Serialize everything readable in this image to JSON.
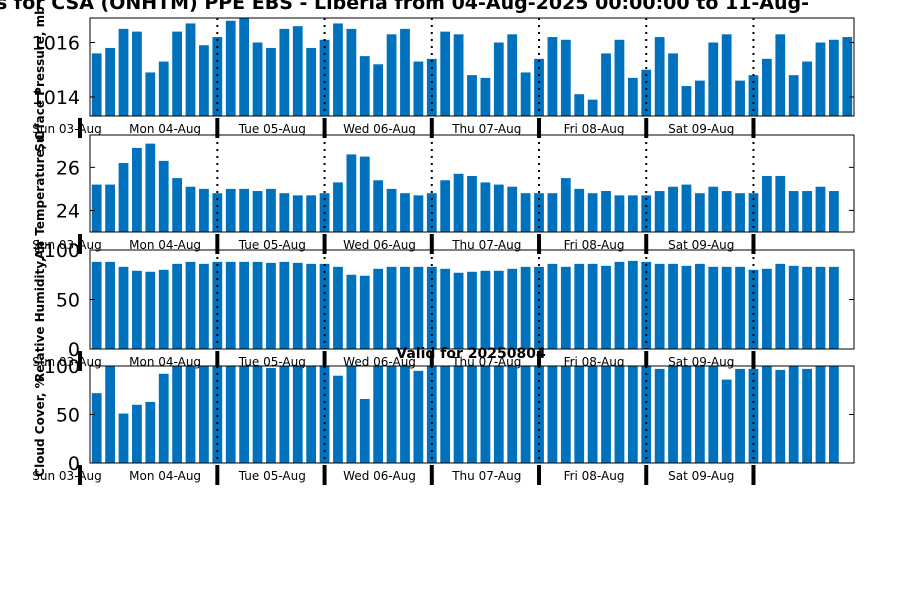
{
  "chart_title": "s for CSA (ONHTM) PPE EBS  - Liberia from 04-Aug-2025 00:00:00 to 11-Aug-",
  "valid_text": "Valid for 20250804",
  "colors": {
    "bar": "#0072BD",
    "axis": "#000000",
    "background": "#ffffff"
  },
  "chart_data": [
    {
      "type": "bar",
      "ylabel": "Surface Pressure, mb",
      "ylim": [
        1013.3,
        1016.9
      ],
      "yticks": [
        1014,
        1016
      ],
      "ytick_labels": [
        "1014",
        "1016"
      ],
      "x": [
        "03-Aug 01:00",
        "03-Aug 04:00",
        "03-Aug 07:00",
        "03-Aug 10:00",
        "03-Aug 13:00",
        "03-Aug 16:00",
        "03-Aug 19:00",
        "03-Aug 22:00",
        "04-Aug 01:00",
        "04-Aug 04:00",
        "04-Aug 07:00",
        "04-Aug 10:00",
        "04-Aug 13:00",
        "04-Aug 16:00",
        "04-Aug 19:00",
        "04-Aug 22:00",
        "05-Aug 01:00",
        "05-Aug 04:00",
        "05-Aug 07:00",
        "05-Aug 10:00",
        "05-Aug 13:00",
        "05-Aug 16:00",
        "05-Aug 19:00",
        "05-Aug 22:00",
        "06-Aug 01:00",
        "06-Aug 04:00",
        "06-Aug 07:00",
        "06-Aug 10:00",
        "06-Aug 13:00",
        "06-Aug 16:00",
        "06-Aug 19:00",
        "06-Aug 22:00",
        "07-Aug 01:00",
        "07-Aug 04:00",
        "07-Aug 07:00",
        "07-Aug 10:00",
        "07-Aug 13:00",
        "07-Aug 16:00",
        "07-Aug 19:00",
        "07-Aug 22:00",
        "08-Aug 01:00",
        "08-Aug 04:00",
        "08-Aug 07:00",
        "08-Aug 10:00",
        "08-Aug 13:00",
        "08-Aug 16:00",
        "08-Aug 19:00",
        "08-Aug 22:00",
        "09-Aug 01:00",
        "09-Aug 04:00",
        "09-Aug 07:00",
        "09-Aug 10:00",
        "09-Aug 13:00",
        "09-Aug 16:00",
        "09-Aug 19:00",
        "09-Aug 22:00",
        "10-Aug 01:00"
      ],
      "values": [
        1015.6,
        1015.8,
        1016.5,
        1016.4,
        1014.9,
        1015.3,
        1016.4,
        1016.7,
        1015.9,
        1016.2,
        1016.8,
        1016.9,
        1016.0,
        1015.8,
        1016.5,
        1016.6,
        1015.8,
        1016.1,
        1016.7,
        1016.5,
        1015.5,
        1015.2,
        1016.3,
        1016.5,
        1015.3,
        1015.4,
        1016.4,
        1016.3,
        1014.8,
        1014.7,
        1016.0,
        1016.3,
        1014.9,
        1015.4,
        1016.2,
        1016.1,
        1014.1,
        1013.9,
        1015.6,
        1016.1,
        1014.7,
        1015.0,
        1016.2,
        1015.6,
        1014.4,
        1014.6,
        1016.0,
        1016.3,
        1014.6,
        1014.8,
        1015.4,
        1016.3,
        1014.8,
        1015.3,
        1016.0,
        1016.1,
        1016.2
      ]
    },
    {
      "type": "bar",
      "ylabel": "Air Temperature, C",
      "ylim": [
        23.0,
        27.5
      ],
      "yticks": [
        24,
        26
      ],
      "ytick_labels": [
        "24",
        "26"
      ],
      "values": [
        25.2,
        25.2,
        26.2,
        26.9,
        27.1,
        26.3,
        25.5,
        25.1,
        25.0,
        24.8,
        25.0,
        25.0,
        24.9,
        25.0,
        24.8,
        24.7,
        24.7,
        24.8,
        25.3,
        26.6,
        26.5,
        25.4,
        25.0,
        24.8,
        24.7,
        24.8,
        25.4,
        25.7,
        25.6,
        25.3,
        25.2,
        25.1,
        24.8,
        24.8,
        24.8,
        25.5,
        25.0,
        24.8,
        24.9,
        24.7,
        24.7,
        24.7,
        24.9,
        25.1,
        25.2,
        24.8,
        25.1,
        24.9,
        24.8,
        24.8,
        25.6,
        25.6,
        24.9,
        24.9,
        25.1,
        24.9
      ]
    },
    {
      "type": "bar",
      "ylabel": "Relative Humidity, %",
      "ylim": [
        0,
        100
      ],
      "yticks": [
        0,
        50,
        100
      ],
      "ytick_labels": [
        "0",
        "50",
        "100"
      ],
      "values": [
        88,
        88,
        83,
        79,
        78,
        80,
        86,
        88,
        86,
        88,
        88,
        88,
        88,
        87,
        88,
        87,
        86,
        86,
        83,
        75,
        74,
        81,
        83,
        83,
        83,
        83,
        81,
        77,
        78,
        79,
        79,
        81,
        83,
        83,
        86,
        83,
        86,
        86,
        84,
        88,
        89,
        88,
        86,
        86,
        84,
        86,
        83,
        83,
        83,
        80,
        81,
        86,
        84,
        83,
        83,
        83
      ]
    },
    {
      "type": "bar",
      "ylabel": "Cloud Cover, %",
      "ylim": [
        0,
        100
      ],
      "yticks": [
        0,
        50,
        100
      ],
      "ytick_labels": [
        "0",
        "50",
        "100"
      ],
      "values": [
        72,
        100,
        51,
        60,
        63,
        92,
        100,
        100,
        100,
        100,
        100,
        100,
        100,
        98,
        100,
        100,
        100,
        100,
        90,
        100,
        66,
        100,
        100,
        100,
        95,
        100,
        100,
        100,
        100,
        100,
        100,
        100,
        100,
        100,
        100,
        100,
        100,
        100,
        100,
        100,
        100,
        100,
        97,
        100,
        100,
        100,
        100,
        86,
        97,
        97,
        100,
        96,
        100,
        97,
        100,
        100
      ]
    }
  ],
  "x_axis": {
    "tick_labels": [
      "Sun 03-Aug",
      "Mon 04-Aug",
      "Tue 05-Aug",
      "Wed 06-Aug",
      "Thu 07-Aug",
      "Fri 08-Aug",
      "Sat 09-Aug"
    ]
  }
}
